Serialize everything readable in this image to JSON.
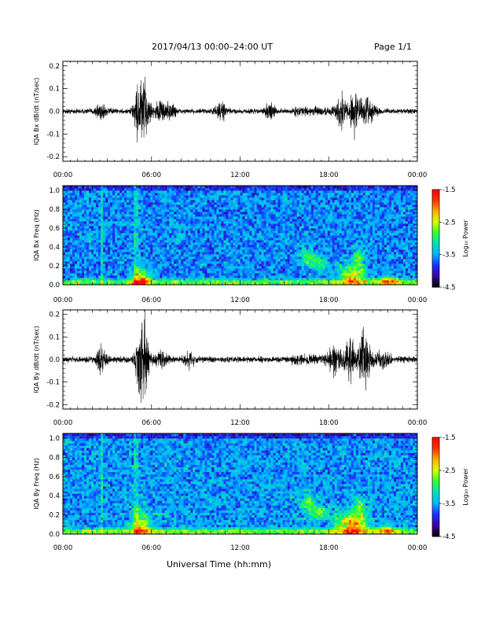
{
  "header": {
    "title": "2017/04/13  00:00–24:00 UT",
    "page": "Page 1/1"
  },
  "footer": {
    "xlabel": "Universal Time (hh:mm)"
  },
  "colorbar": {
    "label": "Log₁₀ Power",
    "ticks": [
      "-1.5",
      "-2.5",
      "-3.5",
      "-4.5"
    ],
    "range": [
      -4.5,
      -1.5
    ],
    "colors": [
      "#000000",
      "#3b00a0",
      "#1a30ff",
      "#00b4ff",
      "#00e0c0",
      "#30ff30",
      "#d8ff00",
      "#ffb000",
      "#ff3000",
      "#ff0000"
    ]
  },
  "chart_data": [
    {
      "type": "line",
      "ylabel": "IQA Bx dB/dt (nT/sec)",
      "xlim": [
        0,
        24
      ],
      "ylim": [
        -0.22,
        0.22
      ],
      "xticks": [
        "00:00",
        "06:00",
        "12:00",
        "18:00",
        "00:00"
      ],
      "yticks": [
        "0.2",
        "0.1",
        "0.0",
        "-0.1",
        "-0.2"
      ],
      "noise_level": 0.015,
      "events": [
        {
          "t": 2.6,
          "amp": 0.05
        },
        {
          "t": 5.2,
          "amp": 0.18
        },
        {
          "t": 5.6,
          "amp": 0.1
        },
        {
          "t": 6.6,
          "amp": 0.06
        },
        {
          "t": 7.3,
          "amp": 0.05
        },
        {
          "t": 10.7,
          "amp": 0.05
        },
        {
          "t": 14.0,
          "amp": 0.04
        },
        {
          "t": 18.9,
          "amp": 0.08
        },
        {
          "t": 19.8,
          "amp": 0.13
        },
        {
          "t": 20.6,
          "amp": 0.07
        }
      ]
    },
    {
      "type": "heatmap",
      "ylabel": "IQA Bx Freq (Hz)",
      "xlim": [
        0,
        24
      ],
      "ylim": [
        0,
        1.05
      ],
      "xticks": [
        "00:00",
        "06:00",
        "12:00",
        "18:00",
        "00:00"
      ],
      "yticks": [
        "1.0",
        "0.8",
        "0.6",
        "0.4",
        "0.2",
        "0.0"
      ],
      "background_level": -3.6,
      "features": [
        {
          "t": 5.3,
          "f": 0.05,
          "dt": 0.6,
          "df": 0.12,
          "level": -2.3
        },
        {
          "t": 16.5,
          "f": 0.3,
          "dt": 0.5,
          "df": 0.1,
          "level": -2.9
        },
        {
          "t": 17.3,
          "f": 0.24,
          "dt": 0.5,
          "df": 0.08,
          "level": -2.9
        },
        {
          "t": 19.6,
          "f": 0.1,
          "dt": 0.8,
          "df": 0.12,
          "level": -2.3
        },
        {
          "t": 20.0,
          "f": 0.3,
          "dt": 0.3,
          "df": 0.1,
          "level": -2.8
        },
        {
          "t": 22.0,
          "f": 0.04,
          "dt": 0.7,
          "df": 0.05,
          "level": -2.6
        }
      ]
    },
    {
      "type": "line",
      "ylabel": "IQA By dB/dt (nT/sec)",
      "xlim": [
        0,
        24
      ],
      "ylim": [
        -0.22,
        0.22
      ],
      "xticks": [
        "00:00",
        "06:00",
        "12:00",
        "18:00",
        "00:00"
      ],
      "yticks": [
        "0.2",
        "0.1",
        "0.0",
        "-0.1",
        "-0.2"
      ],
      "noise_level": 0.018,
      "events": [
        {
          "t": 2.6,
          "amp": 0.07
        },
        {
          "t": 5.3,
          "amp": 0.19
        },
        {
          "t": 5.6,
          "amp": 0.11
        },
        {
          "t": 6.7,
          "amp": 0.05
        },
        {
          "t": 8.5,
          "amp": 0.04
        },
        {
          "t": 18.4,
          "amp": 0.08
        },
        {
          "t": 19.4,
          "amp": 0.12
        },
        {
          "t": 20.4,
          "amp": 0.16
        },
        {
          "t": 21.8,
          "amp": 0.06
        }
      ]
    },
    {
      "type": "heatmap",
      "ylabel": "IQA By Freq (Hz)",
      "xlim": [
        0,
        24
      ],
      "ylim": [
        0,
        1.05
      ],
      "xticks": [
        "00:00",
        "06:00",
        "12:00",
        "18:00",
        "00:00"
      ],
      "yticks": [
        "1.0",
        "0.8",
        "0.6",
        "0.4",
        "0.2",
        "0.0"
      ],
      "background_level": -3.55,
      "features": [
        {
          "t": 5.3,
          "f": 0.08,
          "dt": 0.6,
          "df": 0.15,
          "level": -2.4
        },
        {
          "t": 16.6,
          "f": 0.33,
          "dt": 0.4,
          "df": 0.1,
          "level": -2.8
        },
        {
          "t": 17.4,
          "f": 0.23,
          "dt": 0.6,
          "df": 0.07,
          "level": -2.7
        },
        {
          "t": 19.6,
          "f": 0.1,
          "dt": 1.0,
          "df": 0.13,
          "level": -2.1
        },
        {
          "t": 20.1,
          "f": 0.3,
          "dt": 0.3,
          "df": 0.1,
          "level": -2.7
        },
        {
          "t": 22.0,
          "f": 0.04,
          "dt": 0.7,
          "df": 0.05,
          "level": -2.6
        }
      ]
    }
  ]
}
